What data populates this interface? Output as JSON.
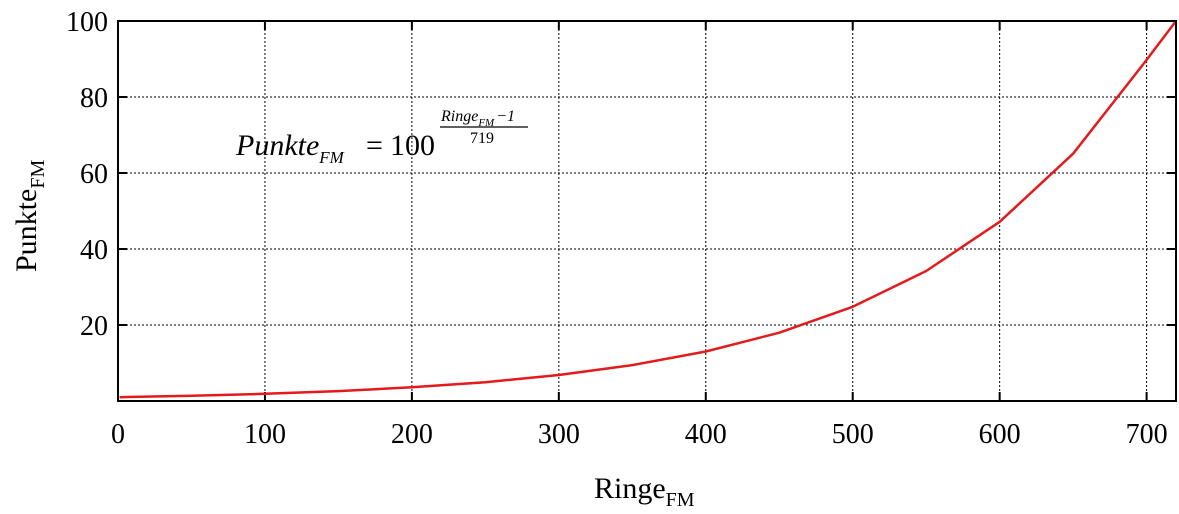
{
  "chart_data": {
    "type": "line",
    "title": "",
    "xlabel": "Ringe",
    "xlabel_sub": "FM",
    "ylabel": "Punkte",
    "ylabel_sub": "FM",
    "xlim": [
      0,
      720
    ],
    "ylim": [
      0,
      100
    ],
    "xticks": [
      0,
      100,
      200,
      300,
      400,
      500,
      600,
      700
    ],
    "xtick_labels": [
      "0",
      "100",
      "200",
      "300",
      "400",
      "500",
      "600",
      "700"
    ],
    "yticks": [
      20,
      40,
      60,
      80,
      100
    ],
    "ytick_labels": [
      "20",
      "40",
      "60",
      "80",
      "100"
    ],
    "grid": true,
    "series": [
      {
        "color": "#e41a1c",
        "x": [
          1,
          50,
          100,
          150,
          200,
          250,
          300,
          350,
          400,
          450,
          500,
          550,
          600,
          650,
          700,
          720
        ],
        "y": [
          1.0,
          1.37,
          1.89,
          2.61,
          3.6,
          4.96,
          6.85,
          9.45,
          13.03,
          17.97,
          24.79,
          34.2,
          47.17,
          65.07,
          89.76,
          100.0
        ]
      }
    ],
    "annotations": [
      {
        "lhs": "Punkte",
        "lhs_sub": "FM",
        "equals": "=",
        "base": "100",
        "exp_numerator": "Ringe",
        "exp_numerator_sub": "FM",
        "exp_numerator_rest": "−1",
        "exp_denominator": "719"
      }
    ]
  }
}
